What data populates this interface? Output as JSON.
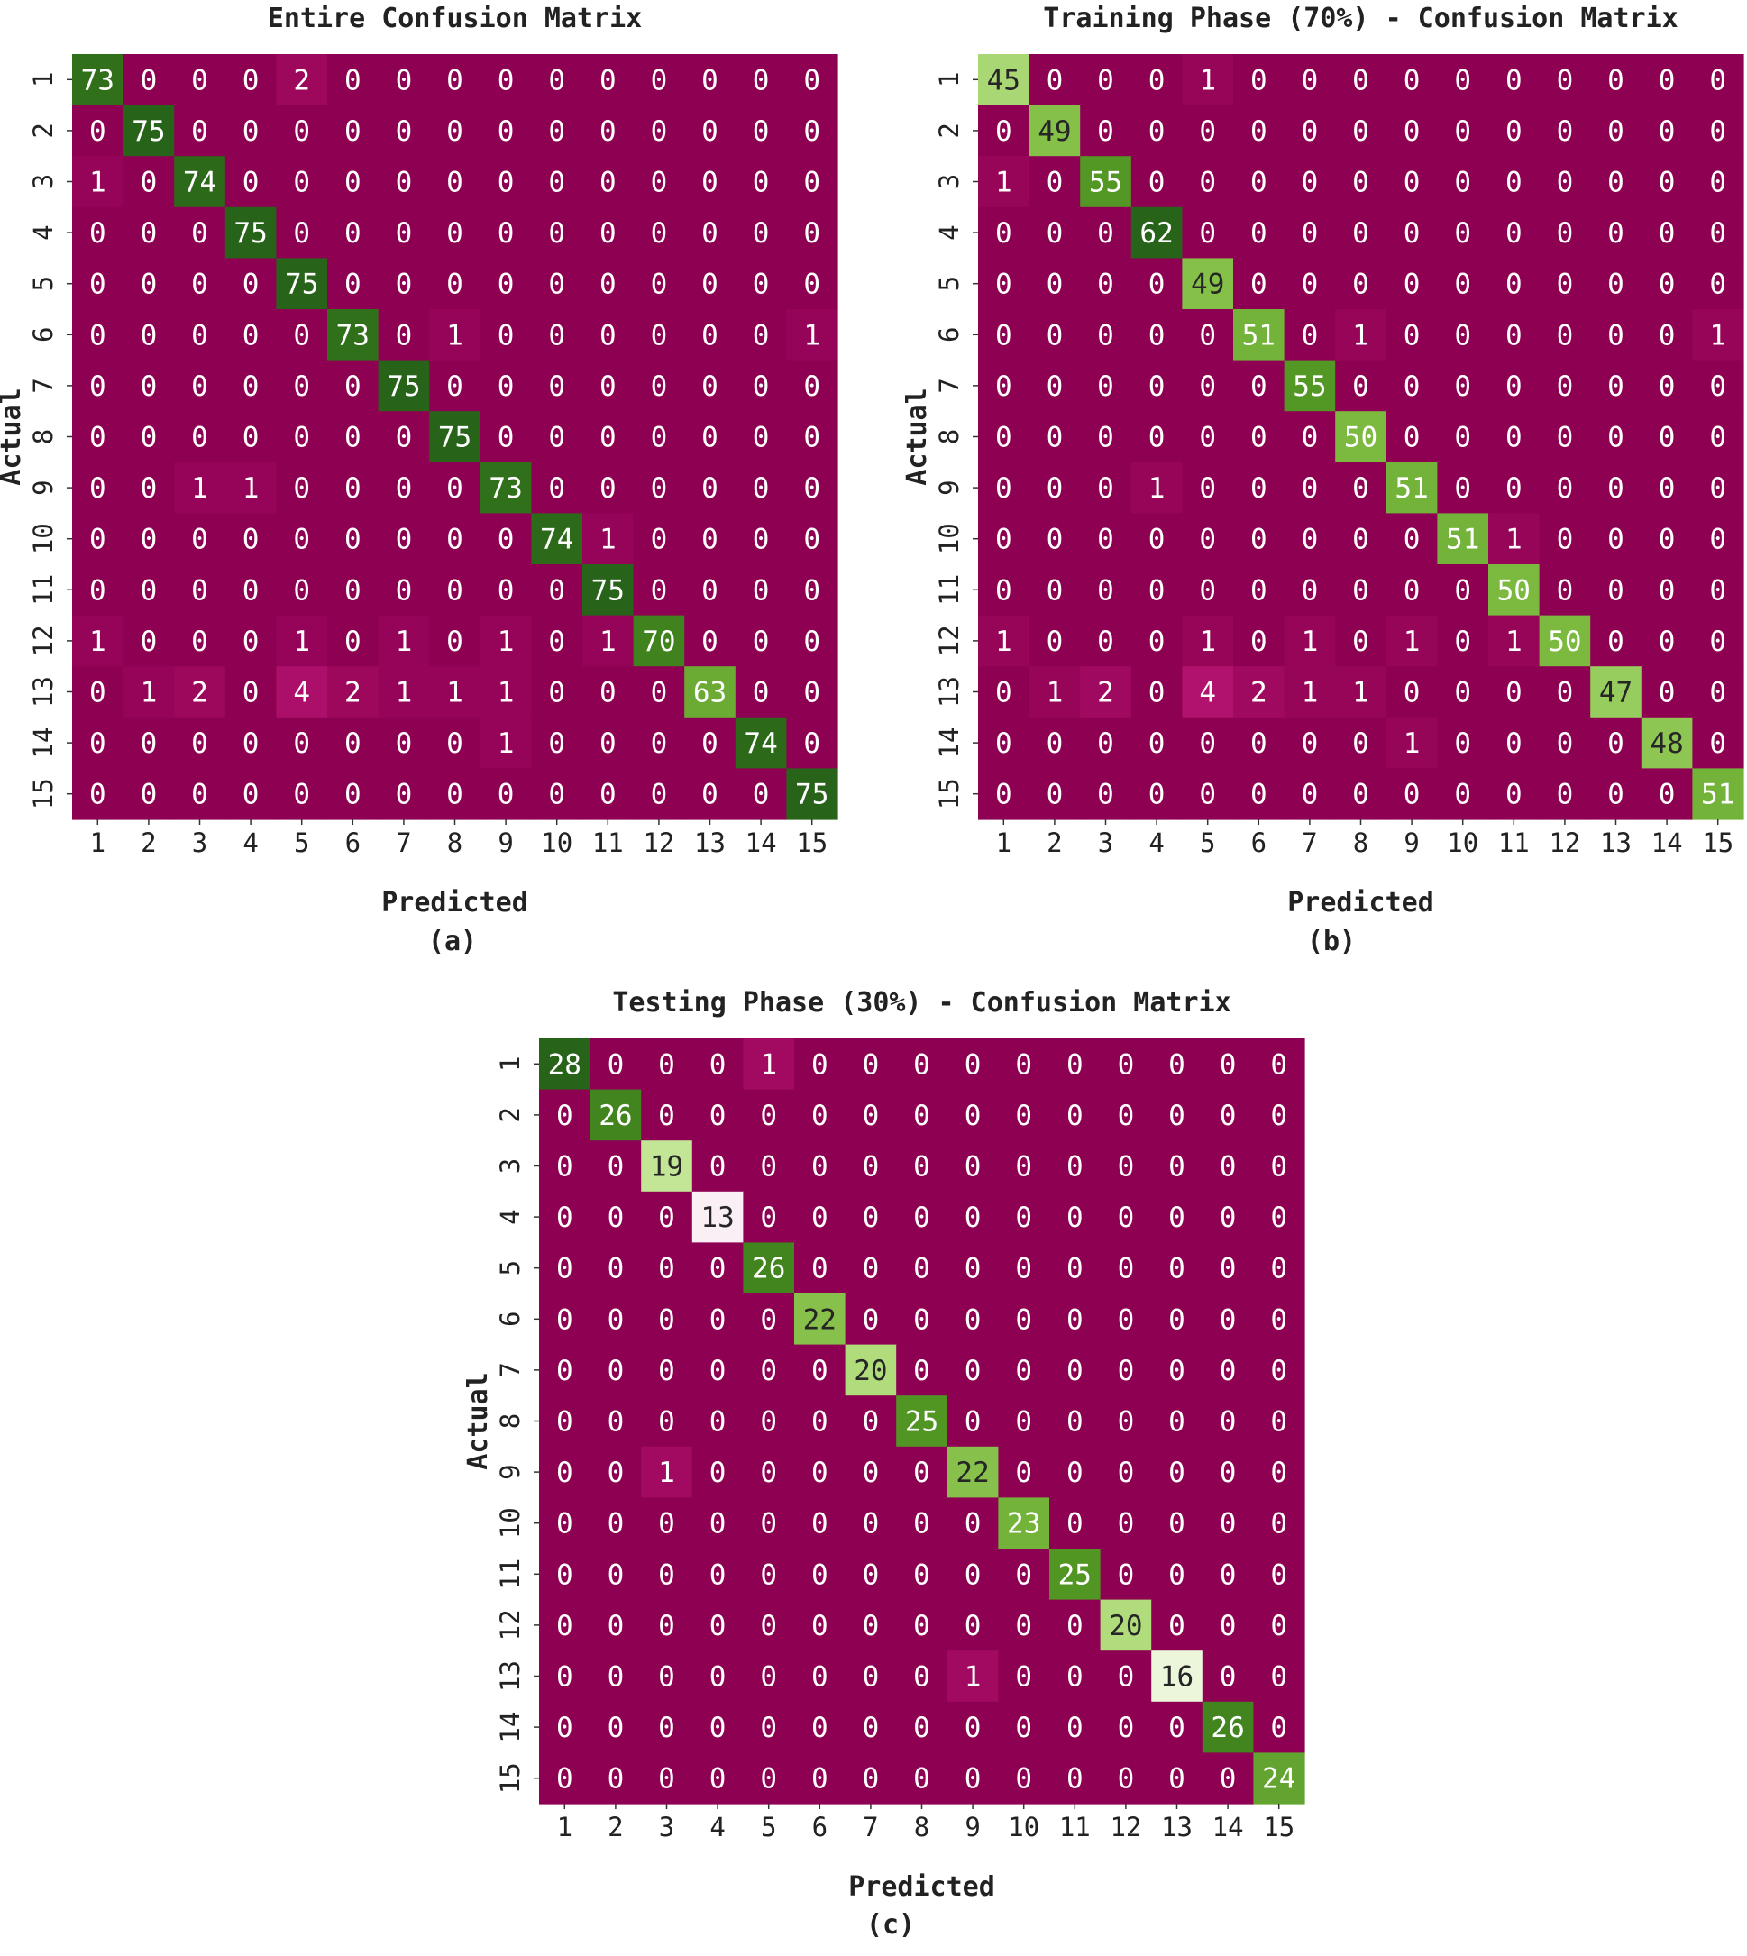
{
  "panel_labels": [
    "(a)",
    "(b)",
    "(c)"
  ],
  "chart_data": [
    {
      "type": "heatmap",
      "title": "Entire Confusion Matrix",
      "xlabel": "Predicted",
      "ylabel": "Actual",
      "x_tick_labels": [
        "1",
        "2",
        "3",
        "4",
        "5",
        "6",
        "7",
        "8",
        "9",
        "10",
        "11",
        "12",
        "13",
        "14",
        "15"
      ],
      "y_tick_labels": [
        "1",
        "2",
        "3",
        "4",
        "5",
        "6",
        "7",
        "8",
        "9",
        "10",
        "11",
        "12",
        "13",
        "14",
        "15"
      ],
      "matrix": [
        [
          73,
          0,
          0,
          0,
          2,
          0,
          0,
          0,
          0,
          0,
          0,
          0,
          0,
          0,
          0
        ],
        [
          0,
          75,
          0,
          0,
          0,
          0,
          0,
          0,
          0,
          0,
          0,
          0,
          0,
          0,
          0
        ],
        [
          1,
          0,
          74,
          0,
          0,
          0,
          0,
          0,
          0,
          0,
          0,
          0,
          0,
          0,
          0
        ],
        [
          0,
          0,
          0,
          75,
          0,
          0,
          0,
          0,
          0,
          0,
          0,
          0,
          0,
          0,
          0
        ],
        [
          0,
          0,
          0,
          0,
          75,
          0,
          0,
          0,
          0,
          0,
          0,
          0,
          0,
          0,
          0
        ],
        [
          0,
          0,
          0,
          0,
          0,
          73,
          0,
          1,
          0,
          0,
          0,
          0,
          0,
          0,
          1
        ],
        [
          0,
          0,
          0,
          0,
          0,
          0,
          75,
          0,
          0,
          0,
          0,
          0,
          0,
          0,
          0
        ],
        [
          0,
          0,
          0,
          0,
          0,
          0,
          0,
          75,
          0,
          0,
          0,
          0,
          0,
          0,
          0
        ],
        [
          0,
          0,
          1,
          1,
          0,
          0,
          0,
          0,
          73,
          0,
          0,
          0,
          0,
          0,
          0
        ],
        [
          0,
          0,
          0,
          0,
          0,
          0,
          0,
          0,
          0,
          74,
          1,
          0,
          0,
          0,
          0
        ],
        [
          0,
          0,
          0,
          0,
          0,
          0,
          0,
          0,
          0,
          0,
          75,
          0,
          0,
          0,
          0
        ],
        [
          1,
          0,
          0,
          0,
          1,
          0,
          1,
          0,
          1,
          0,
          1,
          70,
          0,
          0,
          0
        ],
        [
          0,
          1,
          2,
          0,
          4,
          2,
          1,
          1,
          1,
          0,
          0,
          0,
          63,
          0,
          0
        ],
        [
          0,
          0,
          0,
          0,
          0,
          0,
          0,
          0,
          1,
          0,
          0,
          0,
          0,
          74,
          0
        ],
        [
          0,
          0,
          0,
          0,
          0,
          0,
          0,
          0,
          0,
          0,
          0,
          0,
          0,
          0,
          75
        ]
      ],
      "color_range": [
        0,
        75
      ],
      "colormap": "PiYG"
    },
    {
      "type": "heatmap",
      "title": "Training Phase (70%) - Confusion Matrix",
      "xlabel": "Predicted",
      "ylabel": "Actual",
      "x_tick_labels": [
        "1",
        "2",
        "3",
        "4",
        "5",
        "6",
        "7",
        "8",
        "9",
        "10",
        "11",
        "12",
        "13",
        "14",
        "15"
      ],
      "y_tick_labels": [
        "1",
        "2",
        "3",
        "4",
        "5",
        "6",
        "7",
        "8",
        "9",
        "10",
        "11",
        "12",
        "13",
        "14",
        "15"
      ],
      "matrix": [
        [
          45,
          0,
          0,
          0,
          1,
          0,
          0,
          0,
          0,
          0,
          0,
          0,
          0,
          0,
          0
        ],
        [
          0,
          49,
          0,
          0,
          0,
          0,
          0,
          0,
          0,
          0,
          0,
          0,
          0,
          0,
          0
        ],
        [
          1,
          0,
          55,
          0,
          0,
          0,
          0,
          0,
          0,
          0,
          0,
          0,
          0,
          0,
          0
        ],
        [
          0,
          0,
          0,
          62,
          0,
          0,
          0,
          0,
          0,
          0,
          0,
          0,
          0,
          0,
          0
        ],
        [
          0,
          0,
          0,
          0,
          49,
          0,
          0,
          0,
          0,
          0,
          0,
          0,
          0,
          0,
          0
        ],
        [
          0,
          0,
          0,
          0,
          0,
          51,
          0,
          1,
          0,
          0,
          0,
          0,
          0,
          0,
          1
        ],
        [
          0,
          0,
          0,
          0,
          0,
          0,
          55,
          0,
          0,
          0,
          0,
          0,
          0,
          0,
          0
        ],
        [
          0,
          0,
          0,
          0,
          0,
          0,
          0,
          50,
          0,
          0,
          0,
          0,
          0,
          0,
          0
        ],
        [
          0,
          0,
          0,
          1,
          0,
          0,
          0,
          0,
          51,
          0,
          0,
          0,
          0,
          0,
          0
        ],
        [
          0,
          0,
          0,
          0,
          0,
          0,
          0,
          0,
          0,
          51,
          1,
          0,
          0,
          0,
          0
        ],
        [
          0,
          0,
          0,
          0,
          0,
          0,
          0,
          0,
          0,
          0,
          50,
          0,
          0,
          0,
          0
        ],
        [
          1,
          0,
          0,
          0,
          1,
          0,
          1,
          0,
          1,
          0,
          1,
          50,
          0,
          0,
          0
        ],
        [
          0,
          1,
          2,
          0,
          4,
          2,
          1,
          1,
          0,
          0,
          0,
          0,
          47,
          0,
          0
        ],
        [
          0,
          0,
          0,
          0,
          0,
          0,
          0,
          0,
          1,
          0,
          0,
          0,
          0,
          48,
          0
        ],
        [
          0,
          0,
          0,
          0,
          0,
          0,
          0,
          0,
          0,
          0,
          0,
          0,
          0,
          0,
          51
        ]
      ],
      "color_range": [
        0,
        62
      ],
      "colormap": "PiYG"
    },
    {
      "type": "heatmap",
      "title": "Testing Phase (30%) - Confusion Matrix",
      "xlabel": "Predicted",
      "ylabel": "Actual",
      "x_tick_labels": [
        "1",
        "2",
        "3",
        "4",
        "5",
        "6",
        "7",
        "8",
        "9",
        "10",
        "11",
        "12",
        "13",
        "14",
        "15"
      ],
      "y_tick_labels": [
        "1",
        "2",
        "3",
        "4",
        "5",
        "6",
        "7",
        "8",
        "9",
        "10",
        "11",
        "12",
        "13",
        "14",
        "15"
      ],
      "matrix": [
        [
          28,
          0,
          0,
          0,
          1,
          0,
          0,
          0,
          0,
          0,
          0,
          0,
          0,
          0,
          0
        ],
        [
          0,
          26,
          0,
          0,
          0,
          0,
          0,
          0,
          0,
          0,
          0,
          0,
          0,
          0,
          0
        ],
        [
          0,
          0,
          19,
          0,
          0,
          0,
          0,
          0,
          0,
          0,
          0,
          0,
          0,
          0,
          0
        ],
        [
          0,
          0,
          0,
          13,
          0,
          0,
          0,
          0,
          0,
          0,
          0,
          0,
          0,
          0,
          0
        ],
        [
          0,
          0,
          0,
          0,
          26,
          0,
          0,
          0,
          0,
          0,
          0,
          0,
          0,
          0,
          0
        ],
        [
          0,
          0,
          0,
          0,
          0,
          22,
          0,
          0,
          0,
          0,
          0,
          0,
          0,
          0,
          0
        ],
        [
          0,
          0,
          0,
          0,
          0,
          0,
          20,
          0,
          0,
          0,
          0,
          0,
          0,
          0,
          0
        ],
        [
          0,
          0,
          0,
          0,
          0,
          0,
          0,
          25,
          0,
          0,
          0,
          0,
          0,
          0,
          0
        ],
        [
          0,
          0,
          1,
          0,
          0,
          0,
          0,
          0,
          22,
          0,
          0,
          0,
          0,
          0,
          0
        ],
        [
          0,
          0,
          0,
          0,
          0,
          0,
          0,
          0,
          0,
          23,
          0,
          0,
          0,
          0,
          0
        ],
        [
          0,
          0,
          0,
          0,
          0,
          0,
          0,
          0,
          0,
          0,
          25,
          0,
          0,
          0,
          0
        ],
        [
          0,
          0,
          0,
          0,
          0,
          0,
          0,
          0,
          0,
          0,
          0,
          20,
          0,
          0,
          0
        ],
        [
          0,
          0,
          0,
          0,
          0,
          0,
          0,
          0,
          1,
          0,
          0,
          0,
          16,
          0,
          0
        ],
        [
          0,
          0,
          0,
          0,
          0,
          0,
          0,
          0,
          0,
          0,
          0,
          0,
          0,
          26,
          0
        ],
        [
          0,
          0,
          0,
          0,
          0,
          0,
          0,
          0,
          0,
          0,
          0,
          0,
          0,
          0,
          24
        ]
      ],
      "color_range": [
        0,
        28
      ],
      "colormap": "PiYG"
    }
  ]
}
